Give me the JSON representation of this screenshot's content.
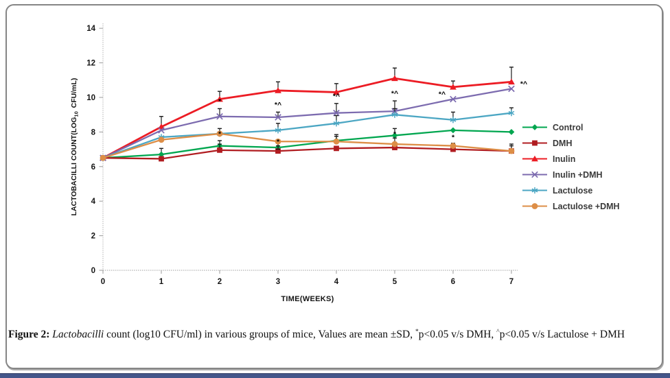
{
  "caption": {
    "label": "Figure 2: ",
    "species": "Lactobacilli",
    "body": " count (log10 CFU/ml) in various groups of mice, Values are mean ±SD, ",
    "sup1": "*",
    "seg1": "p<0.05 v/s DMH, ",
    "sup2": "^",
    "seg2": "p<0.05 v/s Lactulose + DMH"
  },
  "colors": {
    "frame_border": "#858585",
    "bottom_bar": "#44568A",
    "axis_line": "#B3B3B3",
    "tick_text": "#141414"
  },
  "chart_data": {
    "type": "line",
    "title": "",
    "xlabel": "TIME(WEEKS)",
    "ylabel_parts": {
      "pre": "LACTOBACILLI COUNT(LOG",
      "sub": "10",
      "post": " CFU/mL)"
    },
    "x": [
      0,
      1,
      2,
      3,
      4,
      5,
      6,
      7
    ],
    "ylim": [
      0,
      14
    ],
    "yticks": [
      0,
      2,
      4,
      6,
      8,
      10,
      12,
      14
    ],
    "grid": false,
    "legend_position": "right",
    "series": [
      {
        "name": "Control",
        "color": "#00A64F",
        "marker": "diamond",
        "values": [
          6.5,
          6.7,
          7.2,
          7.1,
          7.5,
          7.8,
          8.1,
          8.0
        ],
        "err_up": [
          0,
          0.35,
          0.3,
          0,
          0.35,
          0.4,
          0,
          0
        ]
      },
      {
        "name": "DMH",
        "color": "#B01C20",
        "marker": "square",
        "values": [
          6.5,
          6.45,
          6.95,
          6.9,
          7.05,
          7.1,
          7.0,
          6.9
        ],
        "err_up": [
          0,
          0,
          0.35,
          0.3,
          0,
          0.3,
          0.35,
          0.4
        ]
      },
      {
        "name": "Inulin",
        "color": "#EC1C24",
        "marker": "triangle",
        "values": [
          6.5,
          8.3,
          9.9,
          10.4,
          10.3,
          11.1,
          10.6,
          10.9
        ],
        "err_up": [
          0,
          0.6,
          0.45,
          0.5,
          0.5,
          0.6,
          0.35,
          0.85
        ]
      },
      {
        "name": "Inulin +DMH",
        "color": "#7C6BAF",
        "marker": "x",
        "values": [
          6.5,
          8.1,
          8.9,
          8.85,
          9.1,
          9.2,
          9.9,
          10.5
        ],
        "err_up": [
          0,
          0,
          0.45,
          0.3,
          0.55,
          0.6,
          0,
          0
        ]
      },
      {
        "name": "Lactulose",
        "color": "#4BA6C3",
        "marker": "asterisk",
        "values": [
          6.5,
          7.7,
          7.9,
          8.1,
          8.5,
          9.0,
          8.7,
          9.1
        ],
        "err_up": [
          0,
          0,
          0,
          0.4,
          0.45,
          0.35,
          0.45,
          0.3
        ]
      },
      {
        "name": "Lactulose +DMH",
        "color": "#DD8E47",
        "marker": "circle",
        "values": [
          6.5,
          7.55,
          7.9,
          7.45,
          7.45,
          7.3,
          7.2,
          6.9
        ],
        "err_up": [
          0,
          0,
          0.3,
          0,
          0.3,
          0.35,
          0,
          0.3
        ],
        "err_down": [
          0,
          0,
          0,
          0.45,
          0,
          0,
          0,
          0
        ]
      }
    ],
    "annotations": [
      {
        "week": 2,
        "value": 9.65,
        "text": "*"
      },
      {
        "week": 3,
        "value": 9.45,
        "text": "*^"
      },
      {
        "week": 4,
        "value": 9.95,
        "text": "*^"
      },
      {
        "week": 5,
        "value": 10.1,
        "text": "*^"
      },
      {
        "week": 6,
        "value": 10.05,
        "text": "*^",
        "dx": -16
      },
      {
        "week": 7,
        "value": 10.65,
        "text": "*^",
        "dx": 18
      },
      {
        "week": 2,
        "value": 7.75,
        "text": "*"
      },
      {
        "week": 3,
        "value": 7.3,
        "text": "*"
      },
      {
        "week": 5,
        "value": 7.75,
        "text": "*"
      },
      {
        "week": 6,
        "value": 7.55,
        "text": "*"
      }
    ]
  }
}
